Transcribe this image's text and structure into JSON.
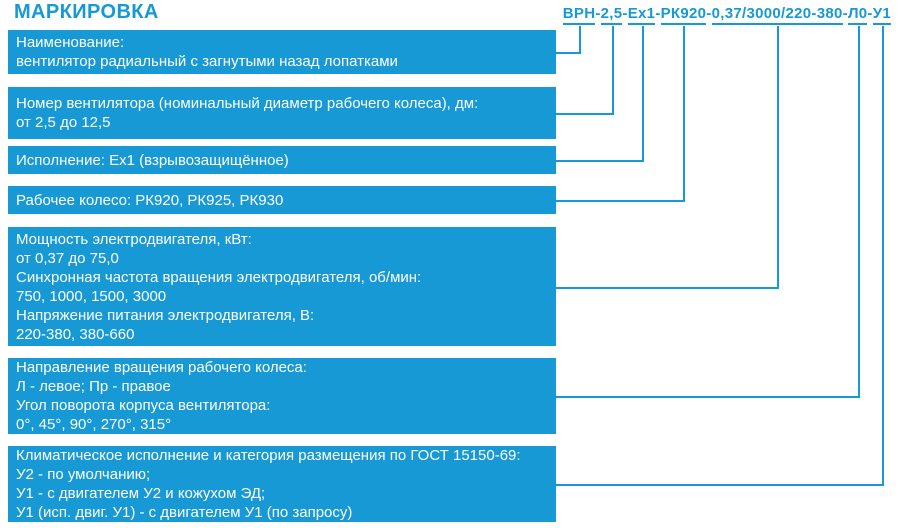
{
  "title": "МАРКИРОВКА",
  "colors": {
    "accent": "#1799D6",
    "box_fill": "#1799D6",
    "box_text": "#FFFFFF",
    "background": "#FFFFFF"
  },
  "code": {
    "full": "ВРН-2,5-Ex1-РК920-0,37/3000/220-380-Л0-У1",
    "separator": "-",
    "segments": [
      "ВРН",
      "2,5",
      "Ex1",
      "РК920",
      "0,37/3000/220-380",
      "Л0",
      "У1"
    ]
  },
  "boxes": [
    {
      "id": "product-name",
      "lines": [
        "Наименование:",
        "вентилятор радиальный с загнутыми назад лопатками"
      ]
    },
    {
      "id": "fan-number",
      "lines": [
        "Номер вентилятора (номинальный диаметр рабочего колеса), дм:",
        "от 2,5 до 12,5"
      ]
    },
    {
      "id": "design-version",
      "lines": [
        "Исполнение: Ex1 (взрывозащищённое)"
      ]
    },
    {
      "id": "impeller",
      "lines": [
        "Рабочее колесо: РК920, РК925, РК930"
      ]
    },
    {
      "id": "motor",
      "lines": [
        "Мощность электродвигателя, кВт:",
        "от 0,37 до 75,0",
        "Синхронная частота вращения электродвигателя, об/мин:",
        "750, 1000, 1500, 3000",
        "Напряжение питания электродвигателя, В:",
        "220-380, 380-660"
      ]
    },
    {
      "id": "rotation",
      "lines": [
        "Направление вращения рабочего колеса:",
        "Л - левое; Пр - правое",
        "Угол поворота корпуса вентилятора:",
        "0°, 45°, 90°, 270°, 315°"
      ]
    },
    {
      "id": "climate",
      "lines": [
        "Климатическое исполнение и категория размещения по ГОСТ 15150-69:",
        "У2 - по умолчанию;",
        "У1 - с двигателем У2 и кожухом ЭД;",
        "У1 (исп. двиг. У1) - с двигателем У1 (по запросу)"
      ]
    }
  ]
}
